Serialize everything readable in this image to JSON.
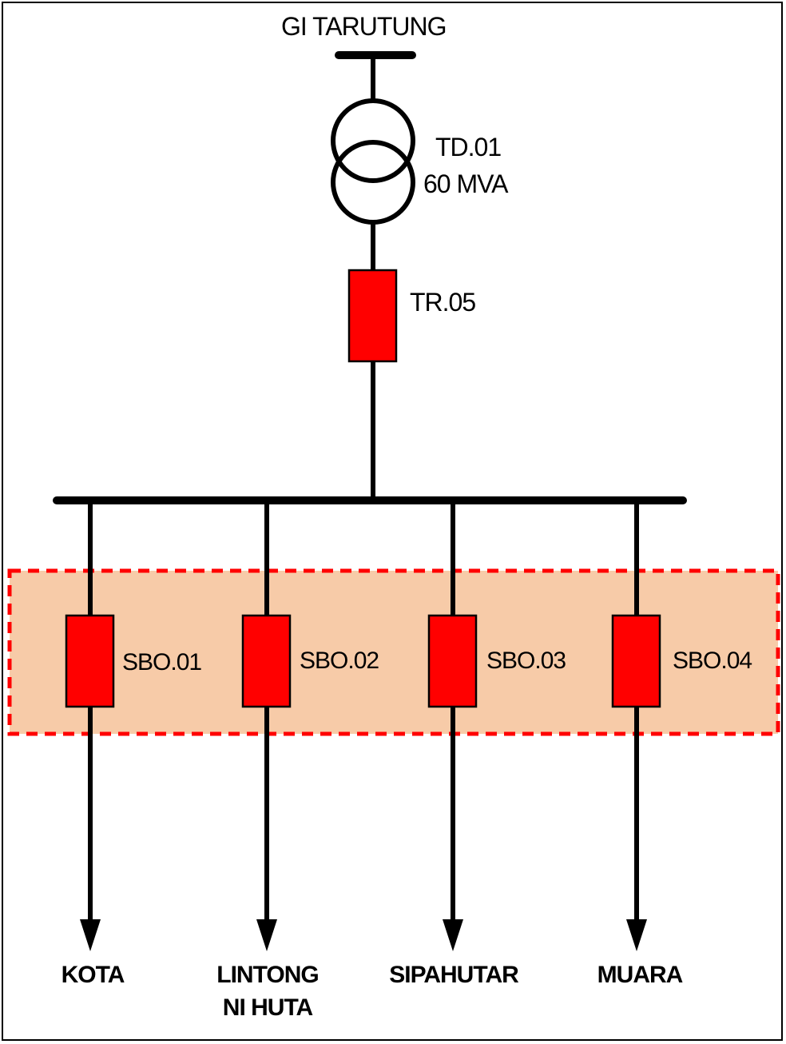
{
  "diagram": {
    "substation": "GI TARUTUNG",
    "transformer": {
      "name": "TD.01",
      "rating": "60 MVA"
    },
    "incoming_breaker": "TR.05",
    "feeders": [
      {
        "breaker": "SBO.01",
        "destination_lines": [
          "KOTA"
        ]
      },
      {
        "breaker": "SBO.02",
        "destination_lines": [
          "LINTONG",
          "NI HUTA"
        ]
      },
      {
        "breaker": "SBO.03",
        "destination_lines": [
          "SIPAHUTAR"
        ]
      },
      {
        "breaker": "SBO.04",
        "destination_lines": [
          "MUARA"
        ]
      }
    ],
    "colors": {
      "breaker_fill": "#ff0000",
      "highlight_fill": "#f7cba8",
      "highlight_border": "#ff0000",
      "line": "#000000"
    }
  }
}
